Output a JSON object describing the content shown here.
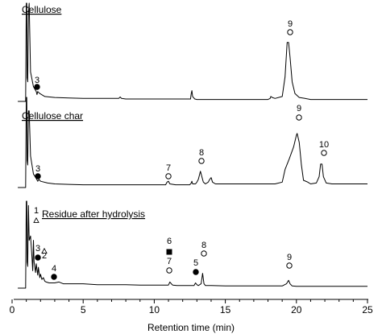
{
  "chart_data": {
    "type": "line",
    "xlabel": "Retention time (min)",
    "xlim": [
      0,
      25
    ],
    "x_ticks": [
      0,
      5,
      10,
      15,
      20,
      25
    ],
    "x_tick_labels": [
      "0",
      "5",
      "10",
      "15",
      "20",
      "25"
    ],
    "panels": [
      {
        "title": "Cellulose",
        "series": [
          {
            "x": [
              0.4,
              0.6,
              0.85,
              0.95,
              1.0,
              1.03,
              1.06,
              1.1,
              1.15,
              1.2,
              1.3,
              1.5,
              1.7,
              1.75,
              1.8,
              1.95,
              2.3,
              3.0,
              4.0,
              5.0,
              6.0,
              7.0,
              7.5,
              7.6,
              7.7,
              8.0,
              9.0,
              10.0,
              11.0,
              12.0,
              12.55,
              12.6,
              12.65,
              12.7,
              12.85,
              13.0,
              14.0,
              15.0,
              16.0,
              17.0,
              18.0,
              18.15,
              18.2,
              18.3,
              18.5,
              19.0,
              19.2,
              19.35,
              19.45,
              19.55,
              19.7,
              19.9,
              20.2,
              20.6,
              21.0,
              21.5,
              22.0,
              22.5,
              23.0,
              23.5,
              24.0,
              24.5,
              25.0
            ],
            "y": [
              0.0,
              0.0,
              0.0,
              0.0,
              1.0,
              1.0,
              0.24,
              0.2,
              0.9,
              1.0,
              0.3,
              0.15,
              0.1,
              0.07,
              0.1,
              0.08,
              0.05,
              0.04,
              0.035,
              0.03,
              0.03,
              0.03,
              0.03,
              0.045,
              0.03,
              0.025,
              0.025,
              0.025,
              0.025,
              0.025,
              0.025,
              0.08,
              0.11,
              0.05,
              0.025,
              0.02,
              0.02,
              0.02,
              0.02,
              0.02,
              0.02,
              0.03,
              0.05,
              0.04,
              0.03,
              0.05,
              0.25,
              0.6,
              0.6,
              0.45,
              0.2,
              0.08,
              0.04,
              0.03,
              0.02,
              0.02,
              0.02,
              0.02,
              0.02,
              0.02,
              0.02,
              0.02,
              0.02
            ]
          }
        ],
        "peaks": [
          {
            "number": "3",
            "symbol": "filled-circle",
            "x": 1.8
          },
          {
            "number": "9",
            "symbol": "open-circle",
            "x": 19.45
          }
        ]
      },
      {
        "title": "Cellulose char",
        "series": [
          {
            "x": [
              0.4,
              0.6,
              0.85,
              0.95,
              1.0,
              1.03,
              1.06,
              1.1,
              1.15,
              1.2,
              1.3,
              1.5,
              1.7,
              1.8,
              1.9,
              2.0,
              2.5,
              3.0,
              4.0,
              5.0,
              6.0,
              7.0,
              8.0,
              9.0,
              10.0,
              10.8,
              10.9,
              11.0,
              11.1,
              11.5,
              12.0,
              12.5,
              12.6,
              12.65,
              12.7,
              12.9,
              13.0,
              13.1,
              13.25,
              13.35,
              13.45,
              13.6,
              13.8,
              13.9,
              14.0,
              14.1,
              14.3,
              15.0,
              16.0,
              17.0,
              18.0,
              18.5,
              19.0,
              19.2,
              19.5,
              19.8,
              20.0,
              20.05,
              20.2,
              20.35,
              20.5,
              20.8,
              21.0,
              21.4,
              21.6,
              21.7,
              21.8,
              21.9,
              22.1,
              22.5,
              23.0,
              24.0,
              25.0
            ],
            "y": [
              0.0,
              0.0,
              0.0,
              0.0,
              1.0,
              1.0,
              0.3,
              0.25,
              0.85,
              0.85,
              0.35,
              0.15,
              0.1,
              0.07,
              0.09,
              0.07,
              0.05,
              0.04,
              0.035,
              0.03,
              0.03,
              0.03,
              0.03,
              0.03,
              0.03,
              0.03,
              0.06,
              0.07,
              0.04,
              0.03,
              0.03,
              0.03,
              0.05,
              0.07,
              0.04,
              0.04,
              0.06,
              0.09,
              0.18,
              0.12,
              0.06,
              0.04,
              0.06,
              0.09,
              0.11,
              0.06,
              0.04,
              0.04,
              0.04,
              0.04,
              0.04,
              0.04,
              0.06,
              0.2,
              0.32,
              0.45,
              0.58,
              0.6,
              0.5,
              0.25,
              0.08,
              0.06,
              0.04,
              0.05,
              0.12,
              0.26,
              0.26,
              0.12,
              0.05,
              0.04,
              0.04,
              0.04,
              0.04
            ]
          }
        ],
        "peaks": [
          {
            "number": "3",
            "symbol": "filled-circle",
            "x": 1.85
          },
          {
            "number": "7",
            "symbol": "open-circle",
            "x": 10.9
          },
          {
            "number": "8",
            "symbol": "open-circle",
            "x": 13.3
          },
          {
            "number": "9",
            "symbol": "open-circle",
            "x": 20.05
          },
          {
            "number": "10",
            "symbol": "open-circle",
            "x": 21.75
          }
        ]
      },
      {
        "title": "Residue after hydrolysis",
        "series": [
          {
            "x": [
              0.4,
              0.6,
              0.85,
              0.95,
              1.0,
              1.03,
              1.06,
              1.1,
              1.15,
              1.2,
              1.3,
              1.4,
              1.45,
              1.5,
              1.55,
              1.65,
              1.7,
              1.8,
              1.85,
              1.95,
              2.0,
              2.1,
              2.2,
              2.3,
              2.4,
              2.6,
              2.8,
              3.0,
              3.3,
              3.6,
              4.0,
              5.0,
              6.0,
              7.0,
              8.0,
              9.0,
              10.0,
              10.5,
              11.0,
              11.1,
              11.2,
              11.3,
              11.6,
              12.0,
              12.5,
              12.8,
              12.9,
              13.0,
              13.1,
              13.3,
              13.4,
              13.5,
              13.6,
              13.8,
              14.0,
              15.0,
              16.0,
              17.0,
              18.0,
              19.0,
              19.3,
              19.45,
              19.55,
              19.7,
              20.0,
              21.0,
              22.0,
              23.0,
              24.0,
              25.0
            ],
            "y": [
              0.0,
              0.0,
              0.0,
              0.0,
              1.0,
              1.0,
              0.3,
              0.25,
              0.95,
              0.55,
              0.6,
              0.35,
              0.2,
              0.55,
              0.3,
              0.18,
              0.28,
              0.15,
              0.24,
              0.12,
              0.16,
              0.1,
              0.12,
              0.08,
              0.07,
              0.06,
              0.06,
              0.06,
              0.07,
              0.05,
              0.05,
              0.05,
              0.04,
              0.04,
              0.04,
              0.035,
              0.035,
              0.035,
              0.035,
              0.07,
              0.05,
              0.035,
              0.03,
              0.03,
              0.03,
              0.03,
              0.06,
              0.04,
              0.03,
              0.05,
              0.17,
              0.05,
              0.03,
              0.03,
              0.03,
              0.025,
              0.025,
              0.025,
              0.025,
              0.025,
              0.05,
              0.09,
              0.05,
              0.025,
              0.02,
              0.02,
              0.02,
              0.02,
              0.02,
              0.02
            ]
          }
        ],
        "peaks": [
          {
            "number": "1",
            "symbol": "open-triangle",
            "x": 1.45
          },
          {
            "number": "2",
            "symbol": "open-triangle",
            "x": 1.95
          },
          {
            "number": "3",
            "symbol": "filled-circle",
            "x": 1.65
          },
          {
            "number": "4",
            "symbol": "filled-circle",
            "x": 2.95
          },
          {
            "number": "5",
            "symbol": "filled-circle",
            "x": 12.9
          },
          {
            "number": "6",
            "symbol": "filled-square",
            "x": 11.0
          },
          {
            "number": "7",
            "symbol": "open-circle",
            "x": 11.0
          },
          {
            "number": "8",
            "symbol": "open-circle",
            "x": 13.45
          },
          {
            "number": "9",
            "symbol": "open-circle",
            "x": 19.5
          }
        ]
      }
    ]
  }
}
